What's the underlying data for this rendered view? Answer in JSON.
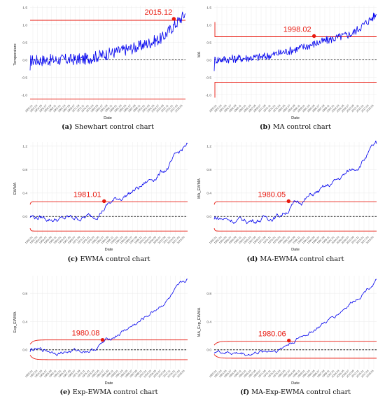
{
  "panels": [
    {
      "id": "a",
      "caption_letter": "(a)",
      "caption_text": " Shewhart control chart",
      "ylabel": "Temperature",
      "xlabel": "Date",
      "annotation": "2015.12",
      "ticks": [
        -1.0,
        -0.5,
        0.0,
        0.5,
        1.0,
        1.5
      ],
      "tick_labels": [
        "-1.0",
        "-0.5",
        "0.0",
        "0.5",
        "1.0",
        "1.5"
      ],
      "ylim": [
        -1.25,
        1.55
      ],
      "ucl": 1.13,
      "lcl": -1.12,
      "center": 0.0,
      "limit_shape": "flat",
      "start": -0.3,
      "end": 1.32,
      "shape": [
        [
          0,
          -0.02
        ],
        [
          0.35,
          0.02
        ],
        [
          0.55,
          0.22
        ],
        [
          0.7,
          0.38
        ],
        [
          0.85,
          0.62
        ],
        [
          1,
          1.32
        ]
      ],
      "noise": 0.17,
      "marker": [
        0.925,
        1.17
      ],
      "signal_axis_x": "left"
    },
    {
      "id": "b",
      "caption_letter": "(b)",
      "caption_text": " MA control chart",
      "ylabel": "MA",
      "xlabel": "Date",
      "annotation": "1998.02",
      "ticks": [
        -1.0,
        -0.5,
        0.0,
        0.5,
        1.0,
        1.5
      ],
      "tick_labels": [
        "-1.0",
        "-0.5",
        "0.0",
        "0.5",
        "1.0",
        "1.5"
      ],
      "ylim": [
        -1.25,
        1.55
      ],
      "ucl": 0.66,
      "lcl": -0.64,
      "center": 0.0,
      "limit_shape": "ma",
      "start": -0.32,
      "end": 1.3,
      "shape": [
        [
          0,
          0.0
        ],
        [
          0.3,
          0.08
        ],
        [
          0.5,
          0.3
        ],
        [
          0.65,
          0.5
        ],
        [
          0.85,
          0.75
        ],
        [
          1,
          1.3
        ]
      ],
      "noise": 0.12,
      "marker": [
        0.615,
        0.68
      ]
    },
    {
      "id": "c",
      "caption_letter": "(c)",
      "caption_text": " EWMA control chart",
      "ylabel": "EWMA",
      "xlabel": "Date",
      "annotation": "1981.01",
      "ticks": [
        0.0,
        0.4,
        0.8,
        1.2
      ],
      "tick_labels": [
        "0.0",
        "0.4",
        "0.8",
        "1.2"
      ],
      "ylim": [
        -0.32,
        1.27
      ],
      "ucl": 0.25,
      "lcl": -0.25,
      "center": 0.0,
      "limit_shape": "ewma",
      "start": -0.02,
      "end": 1.24,
      "shape": [
        [
          0,
          0.0
        ],
        [
          0.2,
          -0.05
        ],
        [
          0.4,
          0.0
        ],
        [
          0.5,
          0.22
        ],
        [
          0.7,
          0.5
        ],
        [
          0.88,
          0.85
        ],
        [
          1,
          1.24
        ]
      ],
      "noise": 0.045,
      "marker": [
        0.47,
        0.26
      ]
    },
    {
      "id": "d",
      "caption_letter": "(d)",
      "caption_text": " MA-EWMA control chart",
      "ylabel": "MA_EWMA",
      "xlabel": "Date",
      "annotation": "1980.05",
      "ticks": [
        0.0,
        0.4,
        0.8,
        1.2
      ],
      "tick_labels": [
        "0.0",
        "0.4",
        "0.8",
        "1.2"
      ],
      "ylim": [
        -0.32,
        1.27
      ],
      "ucl": 0.25,
      "lcl": -0.25,
      "center": 0.0,
      "limit_shape": "ewma",
      "start": -0.05,
      "end": 1.24,
      "shape": [
        [
          0,
          -0.02
        ],
        [
          0.2,
          -0.08
        ],
        [
          0.4,
          0.02
        ],
        [
          0.5,
          0.22
        ],
        [
          0.7,
          0.5
        ],
        [
          0.88,
          0.86
        ],
        [
          1,
          1.24
        ]
      ],
      "noise": 0.045,
      "marker": [
        0.458,
        0.26
      ]
    },
    {
      "id": "e",
      "caption_letter": "(e)",
      "caption_text": " Exp-EWMA control chart",
      "ylabel": "Exp_EWMA",
      "xlabel": "Date",
      "annotation": "1980.08",
      "ticks": [
        0.0,
        0.4,
        0.8
      ],
      "tick_labels": [
        "0.0",
        "0.4",
        "0.8"
      ],
      "ylim": [
        -0.27,
        1.05
      ],
      "ucl": 0.14,
      "lcl": -0.14,
      "center": 0.0,
      "limit_shape": "exp",
      "start": -0.03,
      "end": 1.0,
      "shape": [
        [
          0,
          0.0
        ],
        [
          0.2,
          -0.03
        ],
        [
          0.4,
          0.0
        ],
        [
          0.5,
          0.15
        ],
        [
          0.7,
          0.4
        ],
        [
          0.88,
          0.72
        ],
        [
          1,
          1.0
        ]
      ],
      "noise": 0.025,
      "marker": [
        0.46,
        0.14
      ]
    },
    {
      "id": "f",
      "caption_letter": "(f)",
      "caption_text": " MA-Exp-EWMA control chart",
      "ylabel": "MA_Exp_EWMA",
      "xlabel": "Date",
      "annotation": "1980.06",
      "ticks": [
        0.0,
        0.4,
        0.8
      ],
      "tick_labels": [
        "0.0",
        "0.4",
        "0.8"
      ],
      "ylim": [
        -0.27,
        1.05
      ],
      "ucl": 0.12,
      "lcl": -0.12,
      "center": 0.0,
      "limit_shape": "exp",
      "start": -0.05,
      "end": 1.0,
      "shape": [
        [
          0,
          -0.02
        ],
        [
          0.2,
          -0.06
        ],
        [
          0.4,
          0.01
        ],
        [
          0.5,
          0.14
        ],
        [
          0.7,
          0.4
        ],
        [
          0.88,
          0.74
        ],
        [
          1,
          1.0
        ]
      ],
      "noise": 0.025,
      "marker": [
        0.46,
        0.13
      ]
    }
  ],
  "x_tick_labels": [
    "1950.01",
    "1952.03",
    "1954.05",
    "1956.07",
    "1958.09",
    "1960.11",
    "1963.01",
    "1965.03",
    "1967.05",
    "1969.07",
    "1971.09",
    "1973.11",
    "1976.01",
    "1978.03",
    "1980.05",
    "1982.07",
    "1984.09",
    "1986.11",
    "1989.01",
    "1991.03",
    "1993.05",
    "1995.07",
    "1997.09",
    "1999.11",
    "2002.01",
    "2004.03",
    "2006.05",
    "2008.07",
    "2010.09",
    "2012.11",
    "2015.01",
    "2017.03",
    "2019.05"
  ],
  "colors": {
    "series": "#0000ee",
    "limits": "#e8190f",
    "marker": "#e8190f",
    "annotation": "#e8190f",
    "center": "#000000",
    "grid": "#ececec",
    "caption": "#111111"
  }
}
